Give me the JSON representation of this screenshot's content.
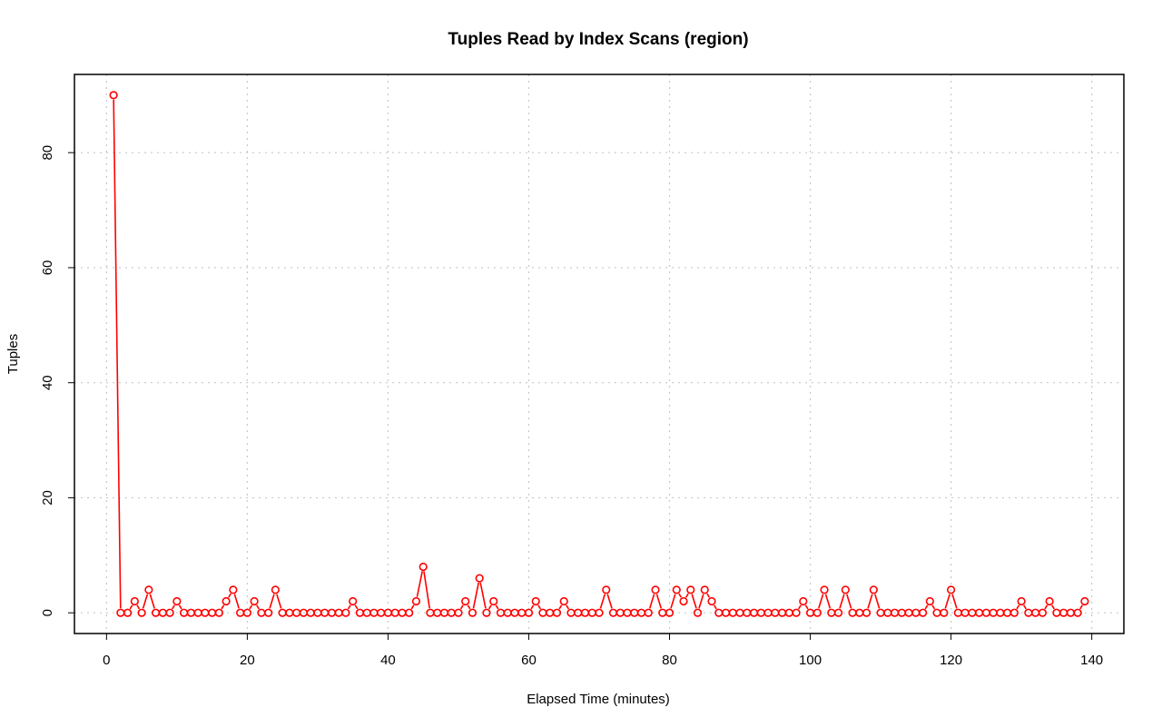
{
  "chart_data": {
    "type": "line",
    "title": "Tuples Read by Index Scans (region)",
    "xlabel": "Elapsed Time (minutes)",
    "ylabel": "Tuples",
    "xlim": [
      -4.56,
      144.56
    ],
    "ylim": [
      -3.6,
      93.6
    ],
    "xticks": [
      0,
      20,
      40,
      60,
      80,
      100,
      120,
      140
    ],
    "yticks": [
      0,
      20,
      40,
      60,
      80
    ],
    "grid": true,
    "marker": "open-circle",
    "color": "#ff0000",
    "series": [
      {
        "x": [
          1,
          2,
          3,
          4,
          5,
          6,
          7,
          8,
          9,
          10,
          11,
          12,
          13,
          14,
          15,
          16,
          17,
          18,
          19,
          20,
          21,
          22,
          23,
          24,
          25,
          26,
          27,
          28,
          29,
          30,
          31,
          32,
          33,
          34,
          35,
          36,
          37,
          38,
          39,
          40,
          41,
          42,
          43,
          44,
          45,
          46,
          47,
          48,
          49,
          50,
          51,
          52,
          53,
          54,
          55,
          56,
          57,
          58,
          59,
          60,
          61,
          62,
          63,
          64,
          65,
          66,
          67,
          68,
          69,
          70,
          71,
          72,
          73,
          74,
          75,
          76,
          77,
          78,
          79,
          80,
          81,
          82,
          83,
          84,
          85,
          86,
          87,
          88,
          89,
          90,
          91,
          92,
          93,
          94,
          95,
          96,
          97,
          98,
          99,
          100,
          101,
          102,
          103,
          104,
          105,
          106,
          107,
          108,
          109,
          110,
          111,
          112,
          113,
          114,
          115,
          116,
          117,
          118,
          119,
          120,
          121,
          122,
          123,
          124,
          125,
          126,
          127,
          128,
          129,
          130,
          131,
          132,
          133,
          134,
          135,
          136,
          137,
          138,
          139
        ],
        "values": [
          90,
          0,
          0,
          2,
          0,
          4,
          0,
          0,
          0,
          2,
          0,
          0,
          0,
          0,
          0,
          0,
          2,
          4,
          0,
          0,
          2,
          0,
          0,
          4,
          0,
          0,
          0,
          0,
          0,
          0,
          0,
          0,
          0,
          0,
          2,
          0,
          0,
          0,
          0,
          0,
          0,
          0,
          0,
          2,
          8,
          0,
          0,
          0,
          0,
          0,
          2,
          0,
          6,
          0,
          2,
          0,
          0,
          0,
          0,
          0,
          2,
          0,
          0,
          0,
          2,
          0,
          0,
          0,
          0,
          0,
          4,
          0,
          0,
          0,
          0,
          0,
          0,
          4,
          0,
          0,
          4,
          2,
          4,
          0,
          4,
          2,
          0,
          0,
          0,
          0,
          0,
          0,
          0,
          0,
          0,
          0,
          0,
          0,
          2,
          0,
          0,
          4,
          0,
          0,
          4,
          0,
          0,
          0,
          4,
          0,
          0,
          0,
          0,
          0,
          0,
          0,
          2,
          0,
          0,
          4,
          0,
          0,
          0,
          0,
          0,
          0,
          0,
          0,
          0,
          2,
          0,
          0,
          0,
          2,
          0,
          0,
          0,
          0,
          2
        ]
      }
    ]
  }
}
